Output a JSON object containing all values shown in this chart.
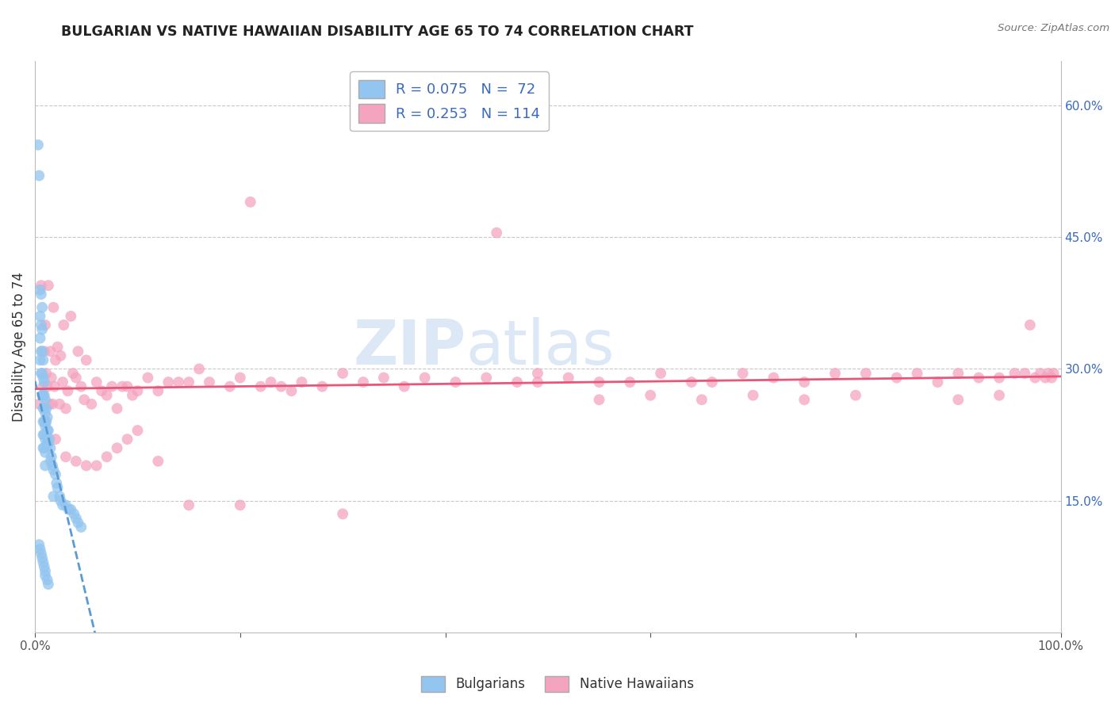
{
  "title": "BULGARIAN VS NATIVE HAWAIIAN DISABILITY AGE 65 TO 74 CORRELATION CHART",
  "source": "Source: ZipAtlas.com",
  "ylabel": "Disability Age 65 to 74",
  "xlim": [
    0.0,
    1.0
  ],
  "ylim": [
    0.0,
    0.65
  ],
  "yticks_right": [
    0.15,
    0.3,
    0.45,
    0.6
  ],
  "yticklabels_right": [
    "15.0%",
    "30.0%",
    "45.0%",
    "60.0%"
  ],
  "bulgarian_R": 0.075,
  "bulgarian_N": 72,
  "hawaiian_R": 0.253,
  "hawaiian_N": 114,
  "legend_labels": [
    "Bulgarians",
    "Native Hawaiians"
  ],
  "blue_color": "#92c5f0",
  "pink_color": "#f4a4be",
  "blue_line_color": "#5b9bd5",
  "pink_line_color": "#e8567a",
  "label_color": "#3a6abf",
  "background_color": "#ffffff",
  "watermark_color": "#dce8f5",
  "bulgarian_x": [
    0.003,
    0.004,
    0.005,
    0.005,
    0.005,
    0.005,
    0.006,
    0.006,
    0.006,
    0.006,
    0.007,
    0.007,
    0.007,
    0.007,
    0.007,
    0.008,
    0.008,
    0.008,
    0.008,
    0.008,
    0.008,
    0.008,
    0.009,
    0.009,
    0.009,
    0.009,
    0.009,
    0.009,
    0.01,
    0.01,
    0.01,
    0.01,
    0.01,
    0.01,
    0.011,
    0.011,
    0.011,
    0.012,
    0.012,
    0.012,
    0.013,
    0.013,
    0.014,
    0.015,
    0.015,
    0.016,
    0.017,
    0.018,
    0.018,
    0.02,
    0.021,
    0.022,
    0.024,
    0.025,
    0.027,
    0.03,
    0.033,
    0.035,
    0.038,
    0.04,
    0.042,
    0.045,
    0.004,
    0.005,
    0.006,
    0.007,
    0.008,
    0.009,
    0.01,
    0.01,
    0.012,
    0.013
  ],
  "bulgarian_y": [
    0.555,
    0.52,
    0.39,
    0.36,
    0.335,
    0.31,
    0.385,
    0.35,
    0.32,
    0.295,
    0.37,
    0.345,
    0.32,
    0.295,
    0.27,
    0.31,
    0.29,
    0.27,
    0.255,
    0.24,
    0.225,
    0.21,
    0.285,
    0.27,
    0.255,
    0.24,
    0.225,
    0.21,
    0.265,
    0.25,
    0.235,
    0.22,
    0.205,
    0.19,
    0.255,
    0.24,
    0.225,
    0.245,
    0.23,
    0.215,
    0.23,
    0.215,
    0.22,
    0.21,
    0.195,
    0.2,
    0.19,
    0.185,
    0.155,
    0.18,
    0.17,
    0.165,
    0.155,
    0.15,
    0.145,
    0.145,
    0.14,
    0.14,
    0.135,
    0.13,
    0.125,
    0.12,
    0.1,
    0.095,
    0.09,
    0.085,
    0.08,
    0.075,
    0.07,
    0.065,
    0.06,
    0.055
  ],
  "hawaiian_x": [
    0.004,
    0.006,
    0.008,
    0.009,
    0.01,
    0.011,
    0.012,
    0.013,
    0.014,
    0.015,
    0.016,
    0.017,
    0.018,
    0.019,
    0.02,
    0.022,
    0.024,
    0.025,
    0.027,
    0.028,
    0.03,
    0.032,
    0.035,
    0.037,
    0.04,
    0.042,
    0.045,
    0.048,
    0.05,
    0.055,
    0.06,
    0.065,
    0.07,
    0.075,
    0.08,
    0.085,
    0.09,
    0.095,
    0.1,
    0.11,
    0.12,
    0.13,
    0.14,
    0.15,
    0.16,
    0.17,
    0.19,
    0.2,
    0.21,
    0.22,
    0.23,
    0.24,
    0.25,
    0.26,
    0.28,
    0.3,
    0.32,
    0.34,
    0.36,
    0.38,
    0.41,
    0.44,
    0.47,
    0.49,
    0.52,
    0.55,
    0.58,
    0.61,
    0.64,
    0.66,
    0.69,
    0.72,
    0.75,
    0.78,
    0.81,
    0.84,
    0.86,
    0.88,
    0.9,
    0.92,
    0.94,
    0.955,
    0.965,
    0.97,
    0.975,
    0.98,
    0.985,
    0.988,
    0.991,
    0.993,
    0.01,
    0.02,
    0.03,
    0.04,
    0.05,
    0.06,
    0.07,
    0.08,
    0.09,
    0.1,
    0.12,
    0.15,
    0.2,
    0.3,
    0.45,
    0.49,
    0.55,
    0.6,
    0.65,
    0.7,
    0.75,
    0.8,
    0.9,
    0.94
  ],
  "hawaiian_y": [
    0.26,
    0.395,
    0.28,
    0.32,
    0.35,
    0.295,
    0.28,
    0.395,
    0.26,
    0.32,
    0.29,
    0.26,
    0.37,
    0.28,
    0.31,
    0.325,
    0.26,
    0.315,
    0.285,
    0.35,
    0.255,
    0.275,
    0.36,
    0.295,
    0.29,
    0.32,
    0.28,
    0.265,
    0.31,
    0.26,
    0.285,
    0.275,
    0.27,
    0.28,
    0.255,
    0.28,
    0.28,
    0.27,
    0.275,
    0.29,
    0.275,
    0.285,
    0.285,
    0.285,
    0.3,
    0.285,
    0.28,
    0.29,
    0.49,
    0.28,
    0.285,
    0.28,
    0.275,
    0.285,
    0.28,
    0.295,
    0.285,
    0.29,
    0.28,
    0.29,
    0.285,
    0.29,
    0.285,
    0.295,
    0.29,
    0.285,
    0.285,
    0.295,
    0.285,
    0.285,
    0.295,
    0.29,
    0.285,
    0.295,
    0.295,
    0.29,
    0.295,
    0.285,
    0.295,
    0.29,
    0.29,
    0.295,
    0.295,
    0.35,
    0.29,
    0.295,
    0.29,
    0.295,
    0.29,
    0.295,
    0.24,
    0.22,
    0.2,
    0.195,
    0.19,
    0.19,
    0.2,
    0.21,
    0.22,
    0.23,
    0.195,
    0.145,
    0.145,
    0.135,
    0.455,
    0.285,
    0.265,
    0.27,
    0.265,
    0.27,
    0.265,
    0.27,
    0.265,
    0.27
  ]
}
